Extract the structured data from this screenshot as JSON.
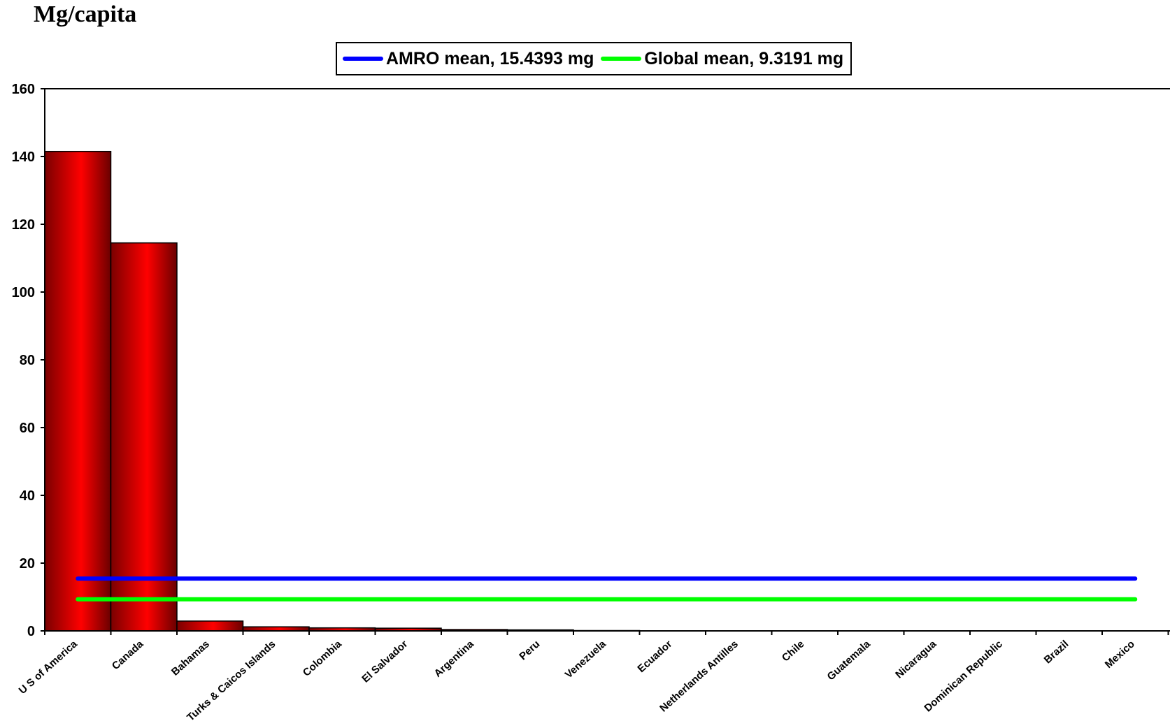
{
  "chart_data": {
    "type": "bar",
    "title": "Mg/capita",
    "categories": [
      "U S of America",
      "Canada",
      "Bahamas",
      "Turks & Caicos Islands",
      "Colombia",
      "El Salvador",
      "Argentina",
      "Peru",
      "Venezuela",
      "Ecuador",
      "Netherlands Antilles",
      "Chile",
      "Guatemala",
      "Nicaragua",
      "Dominican Republic",
      "Brazil",
      "Mexico"
    ],
    "series": [
      {
        "values": [
          141.5,
          114.5,
          2.9,
          1.2,
          0.9,
          0.8,
          0.4,
          0.3,
          0.1,
          0.05,
          0.05,
          0.03,
          0.02,
          0.02,
          0.02,
          0.01,
          0.01
        ],
        "color": "#ff0000"
      }
    ],
    "reference_lines": [
      {
        "name": "AMRO mean, 15.4393 mg",
        "value": 15.4393,
        "color": "#0000ff"
      },
      {
        "name": "Global mean, 9.3191 mg",
        "value": 9.3191,
        "color": "#00ff00"
      }
    ],
    "ylim": [
      0,
      160
    ],
    "yticks": [
      0,
      20,
      40,
      60,
      80,
      100,
      120,
      140,
      160
    ],
    "xlabel": "",
    "ylabel": "",
    "grid": false,
    "legend_position": "top-center"
  }
}
